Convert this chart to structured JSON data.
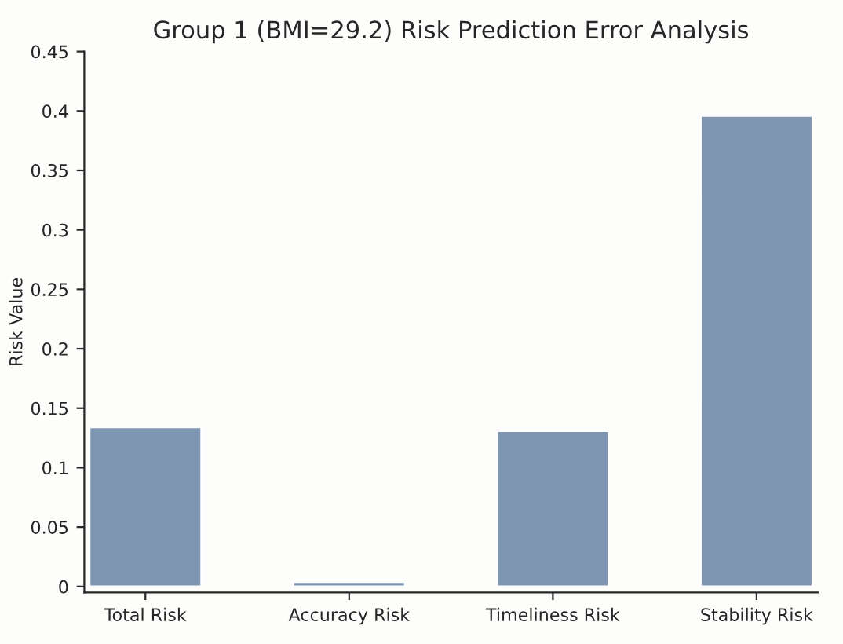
{
  "chart_data": {
    "type": "bar",
    "title": "Group 1 (BMI=29.2) Risk Prediction Error Analysis",
    "ylabel": "Risk Value",
    "categories": [
      "Total Risk",
      "Accuracy Risk",
      "Timeliness Risk",
      "Stability Risk"
    ],
    "values": [
      0.134,
      0.004,
      0.131,
      0.396
    ],
    "color": "#7f96b2",
    "ylim": [
      -0.005,
      0.45
    ],
    "yticks": [
      0,
      0.05,
      0.1,
      0.15,
      0.2,
      0.25,
      0.3,
      0.35,
      0.4,
      0.45
    ],
    "grid": false
  }
}
